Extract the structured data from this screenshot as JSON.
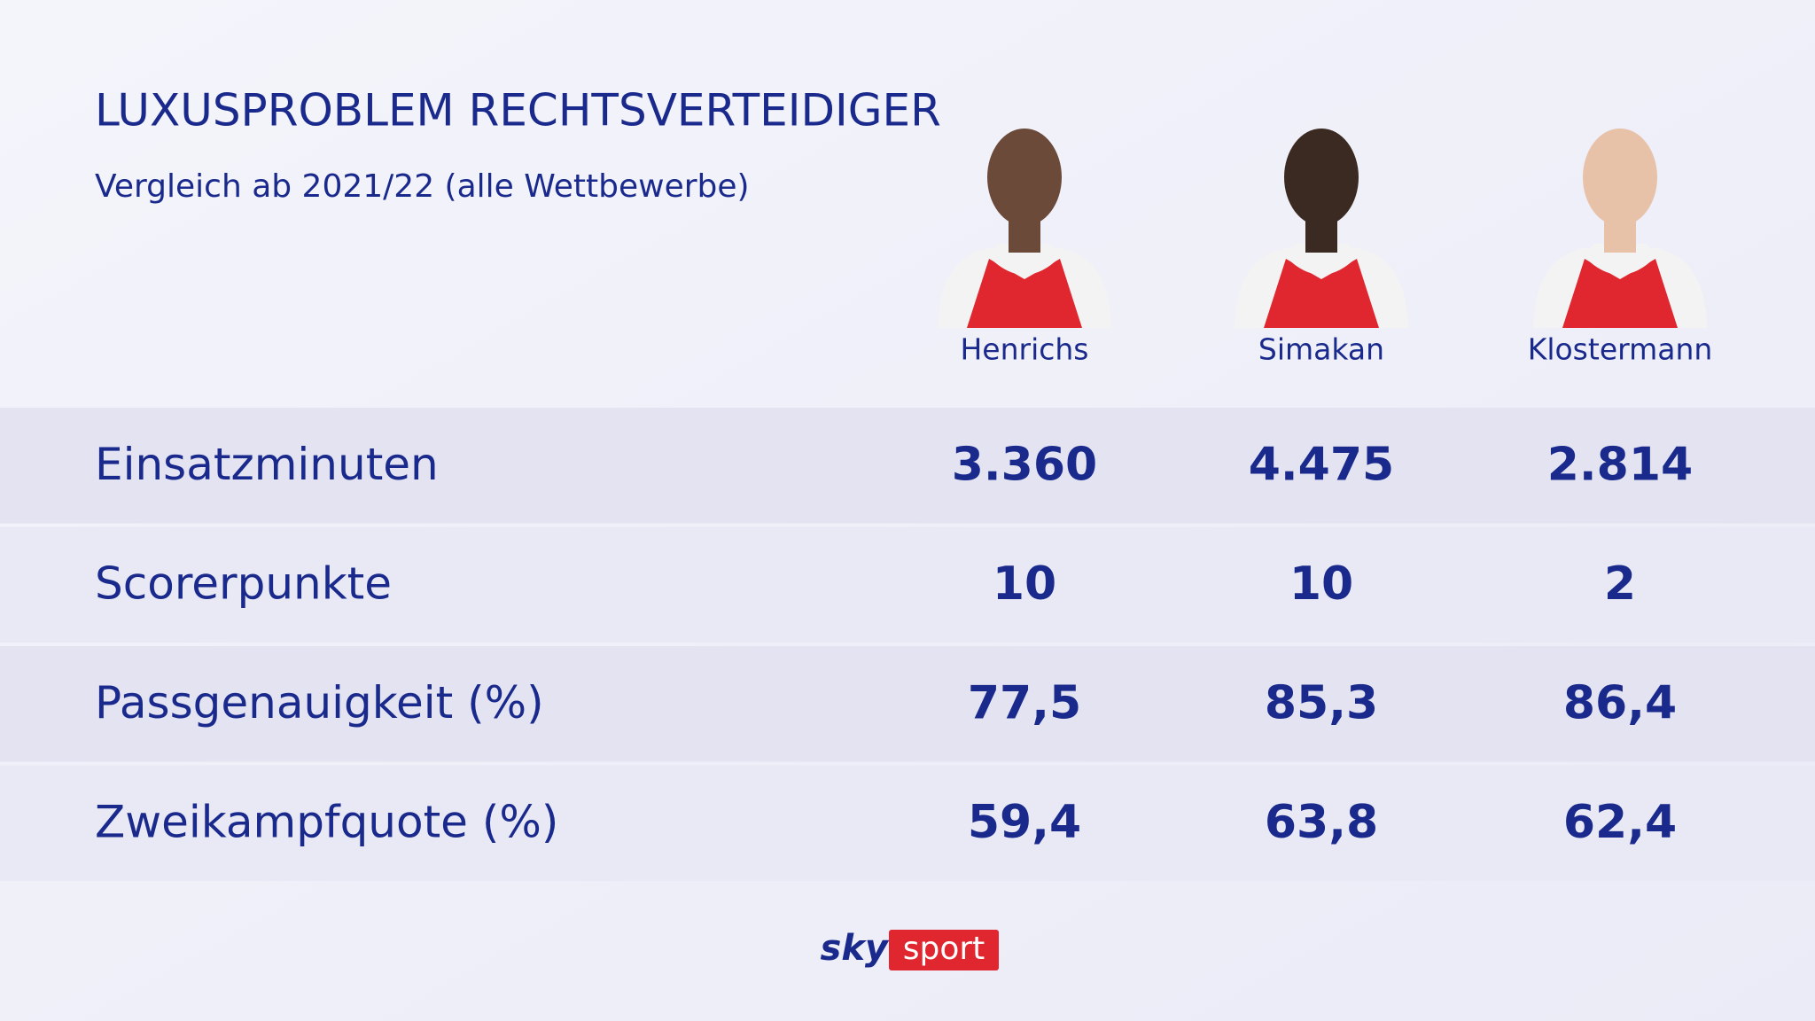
{
  "header": {
    "title": "LUXUSPROBLEM RECHTSVERTEIDIGER",
    "subtitle": "Vergleich ab 2021/22 (alle Wettbewerbe)"
  },
  "players": [
    "Henrichs",
    "Simakan",
    "Klostermann"
  ],
  "table": {
    "rows": [
      [
        "Einsatzminuten",
        "3.360",
        "4.475",
        "2.814"
      ],
      [
        "Scorerpunkte",
        "10",
        "10",
        "2"
      ],
      [
        "Passgenauigkeit (%)",
        "77,5",
        "85,3",
        "86,4"
      ],
      [
        "Zweikampfquote (%)",
        "59,4",
        "63,8",
        "62,4"
      ]
    ]
  },
  "footer": {
    "brand": "sky",
    "product": "sport"
  }
}
